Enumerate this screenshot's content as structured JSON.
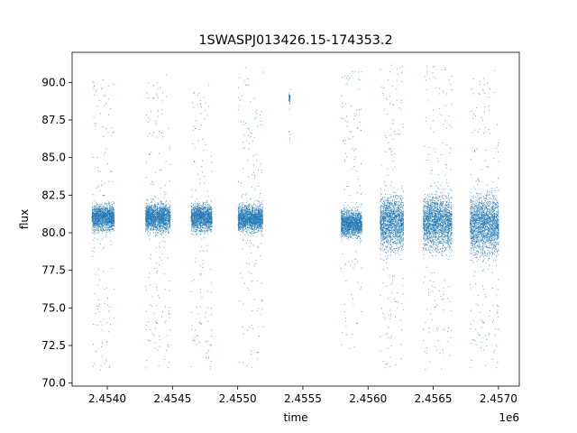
{
  "chart_data": {
    "type": "scatter",
    "title": "1SWASPJ013426.15-174353.2",
    "xlabel": "time",
    "ylabel": "flux",
    "x_offset_label": "1e6",
    "xlim": [
      2453730,
      2457160
    ],
    "ylim": [
      69.8,
      92.0
    ],
    "x_ticks": [
      2454000,
      2454500,
      2455000,
      2455500,
      2456000,
      2456500,
      2457000
    ],
    "x_tick_labels": [
      "2.4540",
      "2.4545",
      "2.4550",
      "2.4555",
      "2.4560",
      "2.4565",
      "2.4570"
    ],
    "y_ticks": [
      70.0,
      72.5,
      75.0,
      77.5,
      80.0,
      82.5,
      85.0,
      87.5,
      90.0
    ],
    "y_tick_labels": [
      "70.0",
      "72.5",
      "75.0",
      "77.5",
      "80.0",
      "82.5",
      "85.0",
      "87.5",
      "90.0"
    ],
    "grid": false,
    "point_color": "#1f77b4",
    "series": [
      {
        "seasons": [
          {
            "x_start": 2453880,
            "x_end": 2454050,
            "center": 81.0,
            "spread_core": [
              79.5,
              82.6
            ],
            "spread_outer": [
              70.8,
              90.4
            ]
          },
          {
            "x_start": 2454290,
            "x_end": 2454480,
            "center": 81.0,
            "spread_core": [
              79.3,
              82.8
            ],
            "spread_outer": [
              70.8,
              90.7
            ]
          },
          {
            "x_start": 2454640,
            "x_end": 2454800,
            "center": 81.0,
            "spread_core": [
              79.4,
              82.7
            ],
            "spread_outer": [
              70.9,
              90.0
            ]
          },
          {
            "x_start": 2455000,
            "x_end": 2455190,
            "center": 81.0,
            "spread_core": [
              79.4,
              82.6
            ],
            "spread_outer": [
              70.8,
              91.0
            ]
          },
          {
            "x_start": 2455390,
            "x_end": 2455400,
            "center": 88.8,
            "spread_core": [
              88.4,
              89.5
            ],
            "spread_outer": [
              86.2,
              90.5
            ]
          },
          {
            "x_start": 2455790,
            "x_end": 2455950,
            "center": 80.6,
            "spread_core": [
              79.0,
              82.3
            ],
            "spread_outer": [
              72.0,
              91.0
            ]
          },
          {
            "x_start": 2456090,
            "x_end": 2456270,
            "center": 80.8,
            "spread_core": [
              77.5,
              84.0
            ],
            "spread_outer": [
              70.8,
              91.2
            ]
          },
          {
            "x_start": 2456420,
            "x_end": 2456640,
            "center": 80.8,
            "spread_core": [
              77.5,
              84.0
            ],
            "spread_outer": [
              70.8,
              91.2
            ]
          },
          {
            "x_start": 2456780,
            "x_end": 2457000,
            "center": 80.6,
            "spread_core": [
              77.0,
              84.2
            ],
            "spread_outer": [
              70.8,
              91.0
            ]
          }
        ]
      }
    ]
  }
}
